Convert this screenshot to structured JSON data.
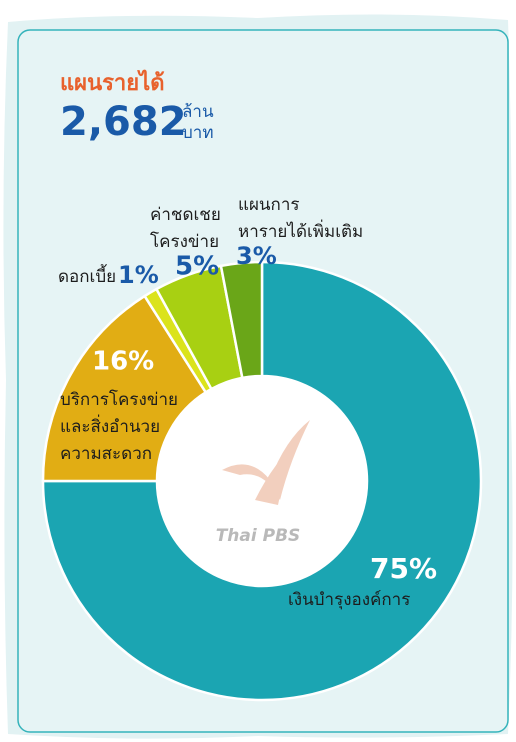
{
  "chart_data": {
    "type": "donut",
    "title": "แผนรายได้",
    "total": "2,682",
    "total_unit": [
      "ล้าน",
      "บาท"
    ],
    "watermark": "Thai PBS",
    "categories": [
      [
        "เงินบำรุงองค์การ"
      ],
      [
        "บริการโครงข่าย",
        "และสิ่งอำนวย",
        "ความสะดวก"
      ],
      [
        "ดอกเบี้ย"
      ],
      [
        "ค่าชดเชย",
        "โครงข่าย"
      ],
      [
        "แผนการ",
        "หารายได้เพิ่มเติม"
      ]
    ],
    "values": [
      75,
      16,
      1,
      5,
      3
    ],
    "value_labels": [
      "75%",
      "16%",
      "1%",
      "5%",
      "3%"
    ],
    "colors": [
      "#1ba5b2",
      "#e1ad14",
      "#dbe31c",
      "#a8d012",
      "#6aa618"
    ],
    "value_label_colors": [
      "#ffffff",
      "#ffffff",
      "#1a5aa8",
      "#1a5aa8",
      "#1a5aa8"
    ]
  }
}
